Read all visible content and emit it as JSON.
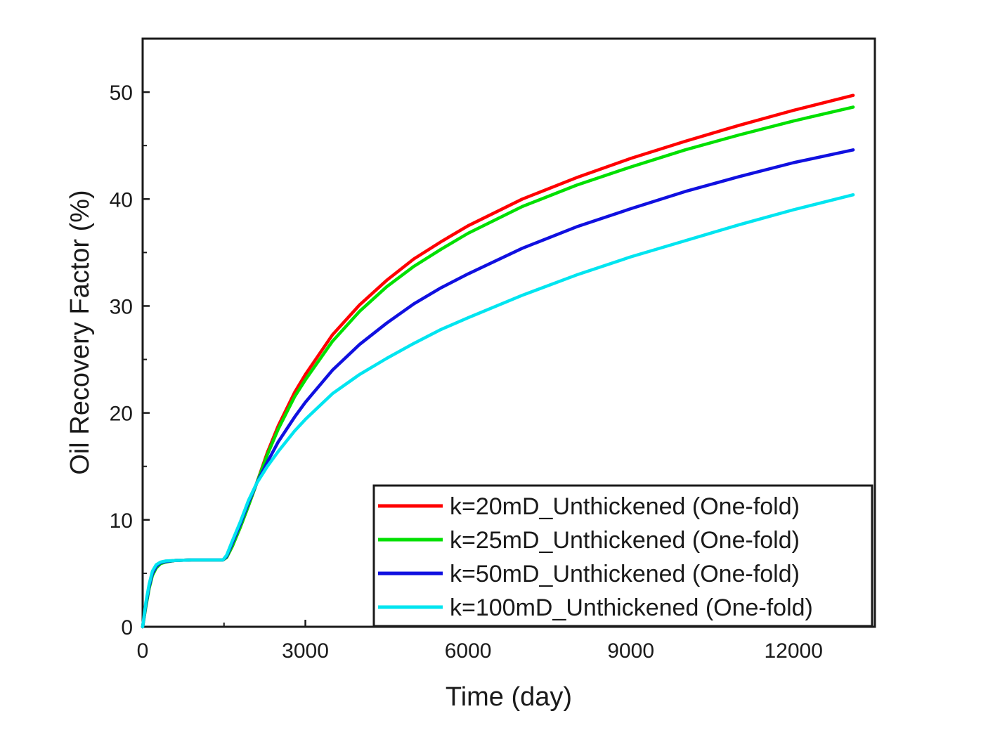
{
  "chart_data": {
    "type": "line",
    "title": "",
    "xlabel": "Time (day)",
    "ylabel": "Oil Recovery Factor (%)",
    "xlim": [
      0,
      13500
    ],
    "ylim": [
      0,
      55
    ],
    "xticks": [
      0,
      3000,
      6000,
      9000,
      12000
    ],
    "xtick_labels": [
      "0",
      "3000",
      "6000",
      "9000",
      "12000"
    ],
    "yticks": [
      0,
      10,
      20,
      30,
      40,
      50
    ],
    "ytick_labels": [
      "0",
      "10",
      "20",
      "30",
      "40",
      "50"
    ],
    "grid": false,
    "legend_position": "bottom-right",
    "x": [
      0,
      60,
      120,
      180,
      250,
      330,
      420,
      600,
      900,
      1200,
      1480,
      1550,
      1650,
      1800,
      1950,
      2100,
      2300,
      2500,
      2800,
      3000,
      3500,
      4000,
      4500,
      5000,
      5500,
      6000,
      7000,
      8000,
      9000,
      10000,
      11000,
      12000,
      13100
    ],
    "series": [
      {
        "name": "k=20mD_Unthickened (One-fold)",
        "color": "#ff0000",
        "values": [
          0,
          2.0,
          3.7,
          4.9,
          5.6,
          5.95,
          6.1,
          6.2,
          6.25,
          6.25,
          6.25,
          6.5,
          7.5,
          9.3,
          11.3,
          13.4,
          16.3,
          18.8,
          21.9,
          23.6,
          27.3,
          30.1,
          32.4,
          34.4,
          36.0,
          37.5,
          40.0,
          42.0,
          43.8,
          45.4,
          46.9,
          48.3,
          49.7
        ]
      },
      {
        "name": "k=25mD_Unthickened (One-fold)",
        "color": "#00e000",
        "values": [
          0,
          1.9,
          3.6,
          4.8,
          5.5,
          5.9,
          6.05,
          6.2,
          6.25,
          6.25,
          6.25,
          6.5,
          7.5,
          9.3,
          11.3,
          13.4,
          16.1,
          18.5,
          21.5,
          23.1,
          26.7,
          29.5,
          31.8,
          33.7,
          35.3,
          36.8,
          39.3,
          41.3,
          43.0,
          44.6,
          46.0,
          47.3,
          48.6
        ]
      },
      {
        "name": "k=50mD_Unthickened (One-fold)",
        "color": "#1010e0",
        "values": [
          0,
          2.1,
          3.8,
          5.0,
          5.65,
          6.0,
          6.1,
          6.2,
          6.25,
          6.25,
          6.25,
          6.6,
          7.8,
          9.6,
          11.6,
          13.4,
          15.4,
          17.3,
          19.6,
          21.0,
          24.0,
          26.4,
          28.4,
          30.2,
          31.7,
          33.0,
          35.4,
          37.4,
          39.1,
          40.7,
          42.1,
          43.4,
          44.6
        ]
      },
      {
        "name": "k=100mD_Unthickened (One-fold)",
        "color": "#00e5f0",
        "values": [
          0,
          2.3,
          4.0,
          5.2,
          5.8,
          6.05,
          6.15,
          6.2,
          6.25,
          6.25,
          6.25,
          6.7,
          8.0,
          9.8,
          11.8,
          13.4,
          15.0,
          16.4,
          18.3,
          19.4,
          21.8,
          23.6,
          25.1,
          26.5,
          27.8,
          28.9,
          31.0,
          32.9,
          34.6,
          36.1,
          37.6,
          39.0,
          40.4
        ]
      }
    ]
  }
}
